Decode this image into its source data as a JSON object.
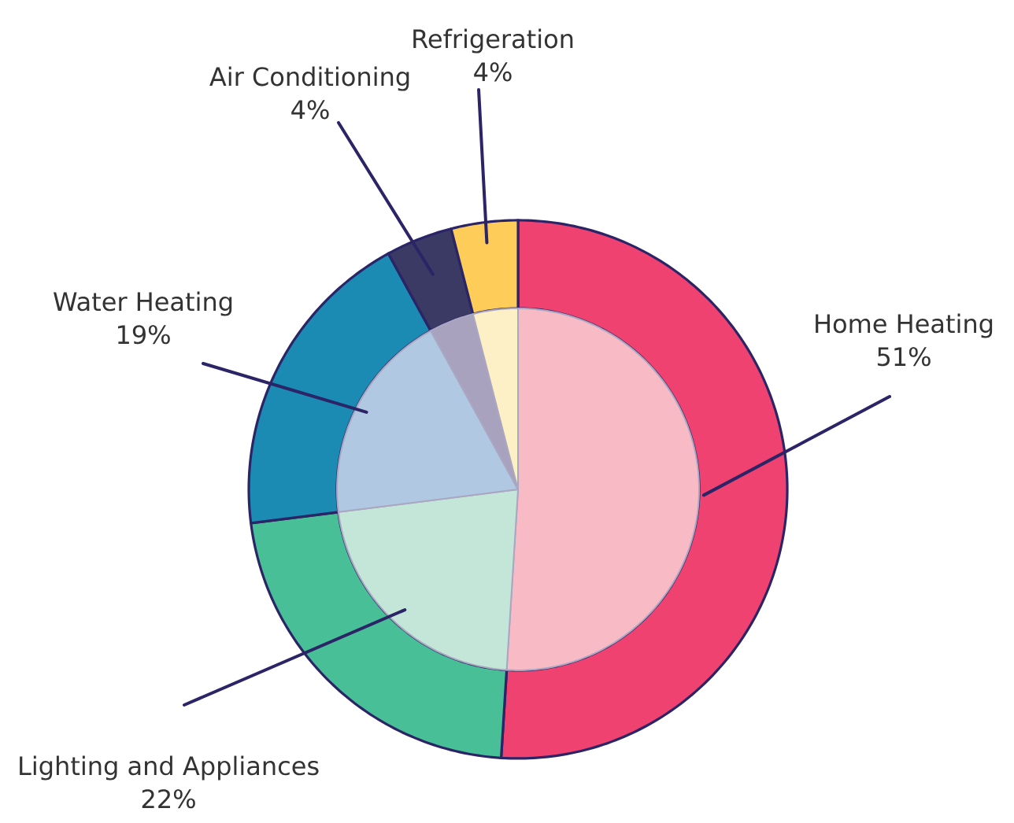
{
  "chart_data": {
    "type": "pie",
    "categories": [
      "Home Heating",
      "Lighting and Appliances",
      "Water Heating",
      "Air Conditioning",
      "Refrigeration"
    ],
    "series": [
      {
        "values": [
          51,
          22,
          19,
          4,
          4
        ],
        "value_labels": [
          "51%",
          "22%",
          "19%",
          "4%",
          "4%"
        ],
        "colors": [
          "#ef4270",
          "#49bf98",
          "#1b8bb4",
          "#3b3a64",
          "#fecc58"
        ]
      },
      {
        "values": [
          51,
          22,
          19,
          4,
          4
        ],
        "colors": [
          "#f8bac5",
          "#c3e6d8",
          "#b0c8e1",
          "#a9a2be",
          "#fef0c6"
        ]
      }
    ]
  }
}
